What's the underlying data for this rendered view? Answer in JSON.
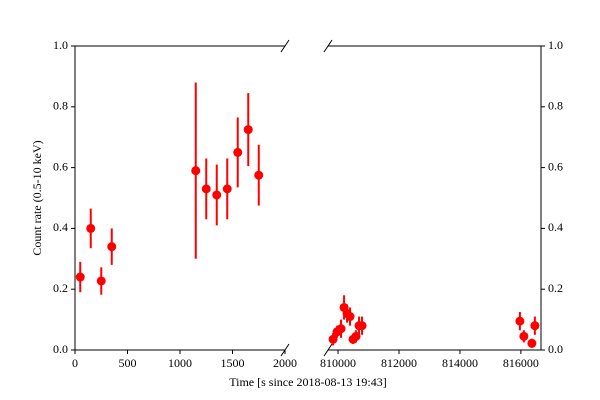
{
  "chart_data": [
    {
      "type": "scatter",
      "ylabel": "Count rate (0.5-10 keV)",
      "xlabel": "Time [s since 2018-08-13 19:43]",
      "color": "#ff0000",
      "x": [
        50,
        150,
        250,
        350,
        1150,
        1250,
        1350,
        1450,
        1550,
        1650,
        1750
      ],
      "values": [
        0.24,
        0.4,
        0.227,
        0.34,
        0.59,
        0.53,
        0.51,
        0.53,
        0.65,
        0.725,
        0.575
      ],
      "errors": [
        0.05,
        0.065,
        0.045,
        0.06,
        0.29,
        0.1,
        0.1,
        0.1,
        0.115,
        0.12,
        0.1
      ],
      "xlim": [
        0,
        2000
      ],
      "xticks": [
        0,
        500,
        1000,
        1500,
        2000
      ],
      "ylim": [
        0,
        1
      ],
      "yticks": [
        {
          "value": 0,
          "label": "0.0"
        },
        {
          "value": 0.2,
          "label": "0.2"
        },
        {
          "value": 0.4,
          "label": "0.4"
        },
        {
          "value": 0.6,
          "label": "0.6"
        },
        {
          "value": 0.8,
          "label": "0.8"
        },
        {
          "value": 1,
          "label": "1.0"
        }
      ],
      "ytick_side": "left"
    },
    {
      "type": "scatter",
      "color": "#ff0000",
      "x": [
        809836,
        809967,
        810098,
        810197,
        810295,
        810393,
        810492,
        810590,
        810689,
        810787,
        815967,
        816098,
        816361,
        816459
      ],
      "values": [
        0.035,
        0.06,
        0.07,
        0.14,
        0.12,
        0.11,
        0.035,
        0.045,
        0.08,
        0.08,
        0.095,
        0.045,
        0.022,
        0.08
      ],
      "errors": [
        0.02,
        0.02,
        0.03,
        0.04,
        0.03,
        0.03,
        0.015,
        0.02,
        0.03,
        0.03,
        0.03,
        0.02,
        0.015,
        0.03
      ],
      "xlim": [
        809670,
        816660
      ],
      "xticks": [
        810000,
        812000,
        814000,
        816000
      ],
      "ylim": [
        0,
        1
      ],
      "yticks": [
        {
          "value": 0,
          "label": "0.0"
        },
        {
          "value": 0.2,
          "label": "0.2"
        },
        {
          "value": 0.4,
          "label": "0.4"
        },
        {
          "value": 0.6,
          "label": "0.6"
        },
        {
          "value": 0.8,
          "label": "0.8"
        },
        {
          "value": 1,
          "label": "1.0"
        }
      ],
      "ytick_side": "right"
    }
  ]
}
